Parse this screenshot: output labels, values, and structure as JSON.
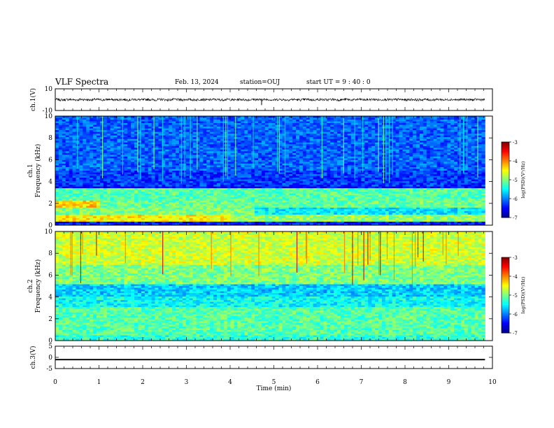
{
  "header": {
    "title": "VLF Spectra",
    "date": "Feb. 13, 2024",
    "station": "station=OUJ",
    "start": "start  UT =   9 : 40 : 0"
  },
  "colors": {
    "colormap": [
      "#00008f",
      "#0000ff",
      "#007fff",
      "#00ffff",
      "#7fff7f",
      "#ffff00",
      "#ff7f00",
      "#ff0000",
      "#800000"
    ],
    "trace": "#000000",
    "background": "#ffffff"
  },
  "chart_data": [
    {
      "type": "line",
      "panel": "ch1-waveform",
      "ylabel": "ch.1(V)",
      "ylim": [
        -10,
        10
      ],
      "yticks": [
        10,
        -10
      ],
      "description_value": "waveform oscillating around 0 V, about ±1 V"
    },
    {
      "type": "heatmap",
      "panel": "ch1-spectrogram",
      "ylabel": "ch.1",
      "ylabel2": "Frequency (kHz)",
      "ylim": [
        0,
        10
      ],
      "yticks": [
        0,
        2,
        4,
        6,
        8,
        10
      ],
      "colorbar": {
        "label": "log(PSD)(V²/Hz)",
        "range": [
          -7,
          -3
        ],
        "ticks": [
          -3,
          -4,
          -5,
          -6,
          -7
        ]
      }
    },
    {
      "type": "heatmap",
      "panel": "ch2-spectrogram",
      "ylabel": "ch.2",
      "ylabel2": "Frequency (kHz)",
      "ylim": [
        0,
        10
      ],
      "yticks": [
        0,
        2,
        4,
        6,
        8,
        10
      ],
      "colorbar": {
        "label": "log(PSD)(V²/Hz)",
        "range": [
          -7,
          -3
        ],
        "ticks": [
          -3,
          -4,
          -5,
          -6,
          -7
        ]
      }
    },
    {
      "type": "line",
      "panel": "ch3-waveform",
      "ylabel": "ch.3(V)",
      "ylim": [
        -5,
        5
      ],
      "yticks": [
        5,
        0,
        -5
      ],
      "description_value": "flat trace near -1 V"
    }
  ],
  "xaxis": {
    "label": "Time (min)",
    "xlim": [
      0,
      10
    ],
    "ticks": [
      "0",
      "1",
      "2",
      "3",
      "4",
      "5",
      "6",
      "7",
      "8",
      "9",
      "10"
    ],
    "data_end": 9.83
  }
}
